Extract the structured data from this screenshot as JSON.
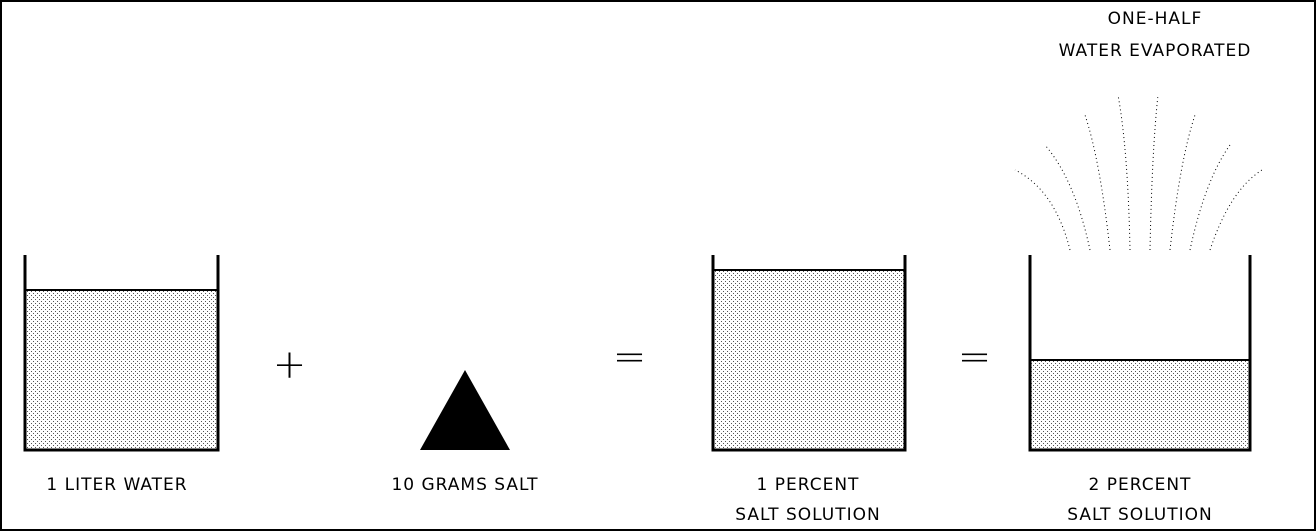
{
  "annotation": {
    "lines": [
      "ONE-HALF",
      "WATER EVAPORATED"
    ]
  },
  "operators": [
    "+",
    "=",
    "="
  ],
  "items": [
    {
      "label": [
        "1 LITER WATER"
      ]
    },
    {
      "label": [
        "10 GRAMS SALT"
      ]
    },
    {
      "label": [
        "1 PERCENT",
        "SALT SOLUTION"
      ]
    },
    {
      "label": [
        "2 PERCENT",
        "SALT SOLUTION"
      ]
    }
  ]
}
